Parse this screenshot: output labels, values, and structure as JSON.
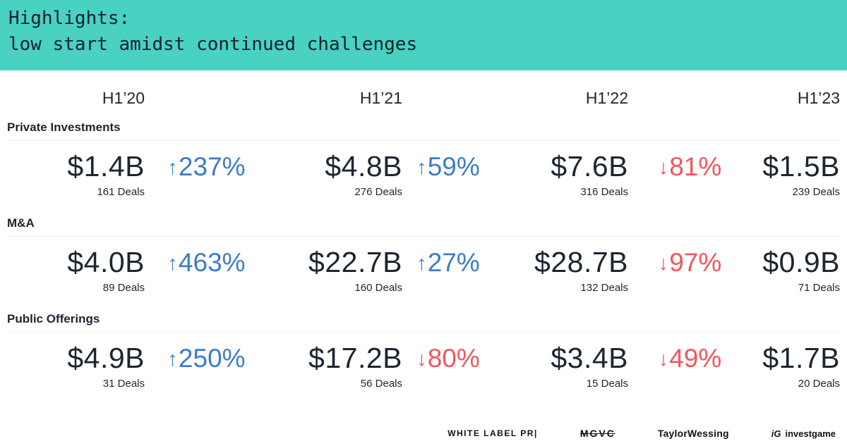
{
  "colors": {
    "banner_bg": "#49d1c2",
    "banner_text": "#132029",
    "text": "#1d2530",
    "up": "#3c7dc6",
    "down": "#f2555f"
  },
  "banner": {
    "title": "Highlights:",
    "subtitle": "low start amidst continued challenges"
  },
  "headers": [
    "H1’20",
    "H1’21",
    "H1’22",
    "H1’23"
  ],
  "sections": [
    {
      "label": "Private Investments",
      "values": [
        {
          "amount": "$1.4B",
          "deals": "161 Deals"
        },
        {
          "amount": "$4.8B",
          "deals": "276 Deals"
        },
        {
          "amount": "$7.6B",
          "deals": "316 Deals"
        },
        {
          "amount": "$1.5B",
          "deals": "239 Deals"
        }
      ],
      "changes": [
        {
          "arrow": "↑",
          "value": "237%",
          "direction": "up"
        },
        {
          "arrow": "↑",
          "value": "59%",
          "direction": "up"
        },
        {
          "arrow": "↓",
          "value": "81%",
          "direction": "down"
        }
      ]
    },
    {
      "label": "M&A",
      "values": [
        {
          "amount": "$4.0B",
          "deals": "89 Deals"
        },
        {
          "amount": "$22.7B",
          "deals": "160 Deals"
        },
        {
          "amount": "$28.7B",
          "deals": "132 Deals"
        },
        {
          "amount": "$0.9B",
          "deals": "71 Deals"
        }
      ],
      "changes": [
        {
          "arrow": "↑",
          "value": "463%",
          "direction": "up"
        },
        {
          "arrow": "↑",
          "value": "27%",
          "direction": "up"
        },
        {
          "arrow": "↓",
          "value": "97%",
          "direction": "down"
        }
      ]
    },
    {
      "label": "Public Offerings",
      "values": [
        {
          "amount": "$4.9B",
          "deals": "31 Deals"
        },
        {
          "amount": "$17.2B",
          "deals": "56 Deals"
        },
        {
          "amount": "$3.4B",
          "deals": "15 Deals"
        },
        {
          "amount": "$1.7B",
          "deals": "20 Deals"
        }
      ],
      "changes": [
        {
          "arrow": "↑",
          "value": "250%",
          "direction": "up"
        },
        {
          "arrow": "↓",
          "value": "80%",
          "direction": "down"
        },
        {
          "arrow": "↓",
          "value": "49%",
          "direction": "down"
        }
      ]
    }
  ],
  "footer": {
    "logos": [
      {
        "text": "WHITE LABEL PR|"
      },
      {
        "text": "MGVC"
      },
      {
        "text": "TaylorWessing"
      },
      {
        "prefix": "iG",
        "text": "investgame"
      }
    ]
  },
  "chart_data": {
    "type": "table",
    "title": "Highlights: low start amidst continued challenges",
    "columns": [
      "H1'20",
      "H1'21",
      "H1'22",
      "H1'23"
    ],
    "rows": [
      {
        "category": "Private Investments",
        "values_usd_billions": [
          1.4,
          4.8,
          7.6,
          1.5
        ],
        "deals": [
          161,
          276,
          316,
          239
        ],
        "pct_change_between_periods": [
          "+237%",
          "+59%",
          "-81%"
        ]
      },
      {
        "category": "M&A",
        "values_usd_billions": [
          4.0,
          22.7,
          28.7,
          0.9
        ],
        "deals": [
          89,
          160,
          132,
          71
        ],
        "pct_change_between_periods": [
          "+463%",
          "+27%",
          "-97%"
        ]
      },
      {
        "category": "Public Offerings",
        "values_usd_billions": [
          4.9,
          17.2,
          3.4,
          1.7
        ],
        "deals": [
          31,
          56,
          15,
          20
        ],
        "pct_change_between_periods": [
          "+250%",
          "-80%",
          "-49%"
        ]
      }
    ],
    "legend_position": "none",
    "grid": false
  }
}
